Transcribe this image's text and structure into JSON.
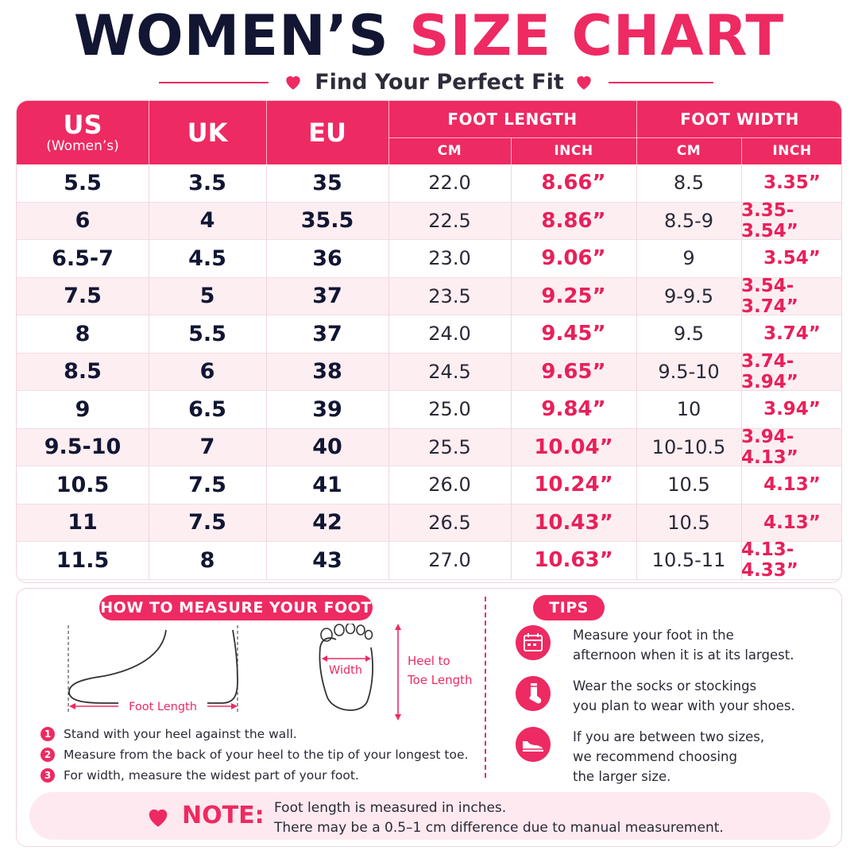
{
  "title": {
    "part1": "WOMEN’S",
    "part2": "SIZE CHART"
  },
  "subtitle": "Find Your Perfect Fit",
  "table": {
    "headers": {
      "us": "US",
      "us_sub": "(Women’s)",
      "uk": "UK",
      "eu": "EU",
      "foot_length": "FOOT LENGTH",
      "foot_width": "FOOT WIDTH",
      "cm": "CM",
      "inch": "INCH"
    },
    "rows": [
      {
        "us": "5.5",
        "uk": "3.5",
        "eu": "35",
        "len_cm": "22.0",
        "len_in": "8.66”",
        "wid_cm": "8.5",
        "wid_in": "3.35”"
      },
      {
        "us": "6",
        "uk": "4",
        "eu": "35.5",
        "len_cm": "22.5",
        "len_in": "8.86”",
        "wid_cm": "8.5-9",
        "wid_in": "3.35-3.54”"
      },
      {
        "us": "6.5-7",
        "uk": "4.5",
        "eu": "36",
        "len_cm": "23.0",
        "len_in": "9.06”",
        "wid_cm": "9",
        "wid_in": "3.54”"
      },
      {
        "us": "7.5",
        "uk": "5",
        "eu": "37",
        "len_cm": "23.5",
        "len_in": "9.25”",
        "wid_cm": "9-9.5",
        "wid_in": "3.54-3.74”"
      },
      {
        "us": "8",
        "uk": "5.5",
        "eu": "37",
        "len_cm": "24.0",
        "len_in": "9.45”",
        "wid_cm": "9.5",
        "wid_in": "3.74”"
      },
      {
        "us": "8.5",
        "uk": "6",
        "eu": "38",
        "len_cm": "24.5",
        "len_in": "9.65”",
        "wid_cm": "9.5-10",
        "wid_in": "3.74-3.94”"
      },
      {
        "us": "9",
        "uk": "6.5",
        "eu": "39",
        "len_cm": "25.0",
        "len_in": "9.84”",
        "wid_cm": "10",
        "wid_in": "3.94”"
      },
      {
        "us": "9.5-10",
        "uk": "7",
        "eu": "40",
        "len_cm": "25.5",
        "len_in": "10.04”",
        "wid_cm": "10-10.5",
        "wid_in": "3.94-4.13”"
      },
      {
        "us": "10.5",
        "uk": "7.5",
        "eu": "41",
        "len_cm": "26.0",
        "len_in": "10.24”",
        "wid_cm": "10.5",
        "wid_in": "4.13”"
      },
      {
        "us": "11",
        "uk": "7.5",
        "eu": "42",
        "len_cm": "26.5",
        "len_in": "10.43”",
        "wid_cm": "10.5",
        "wid_in": "4.13”"
      },
      {
        "us": "11.5",
        "uk": "8",
        "eu": "43",
        "len_cm": "27.0",
        "len_in": "10.63”",
        "wid_cm": "10.5-11",
        "wid_in": "4.13-4.33”"
      }
    ]
  },
  "measure": {
    "heading": "HOW TO MEASURE YOUR FOOT",
    "foot_length_label": "Foot Length",
    "width_label": "Width",
    "heel_to_toe_label_1": "Heel to",
    "heel_to_toe_label_2": "Toe Length",
    "steps": [
      {
        "num": "1",
        "text": "Stand with your heel against the wall."
      },
      {
        "num": "2",
        "text": "Measure from the back of your heel to the tip of your longest toe."
      },
      {
        "num": "3",
        "text": "For width, measure the widest part of your foot."
      }
    ]
  },
  "tips": {
    "heading": "TIPS",
    "items": [
      {
        "icon": "calendar-icon",
        "text": "Measure your foot in the\nafternoon when it is at its largest."
      },
      {
        "icon": "sock-icon",
        "text": "Wear the socks or stockings\nyou plan to wear with your shoes."
      },
      {
        "icon": "shoe-icon",
        "text": "If you are between two sizes,\nwe recommend choosing\nthe larger size."
      }
    ]
  },
  "note": {
    "label": "NOTE:",
    "line1": "Foot length is measured in inches.",
    "line2": "There may be a 0.5–1 cm difference due to manual measurement."
  },
  "colors": {
    "accent": "#ee2a62",
    "navy": "#121633",
    "row_alt": "#fdeef2"
  }
}
